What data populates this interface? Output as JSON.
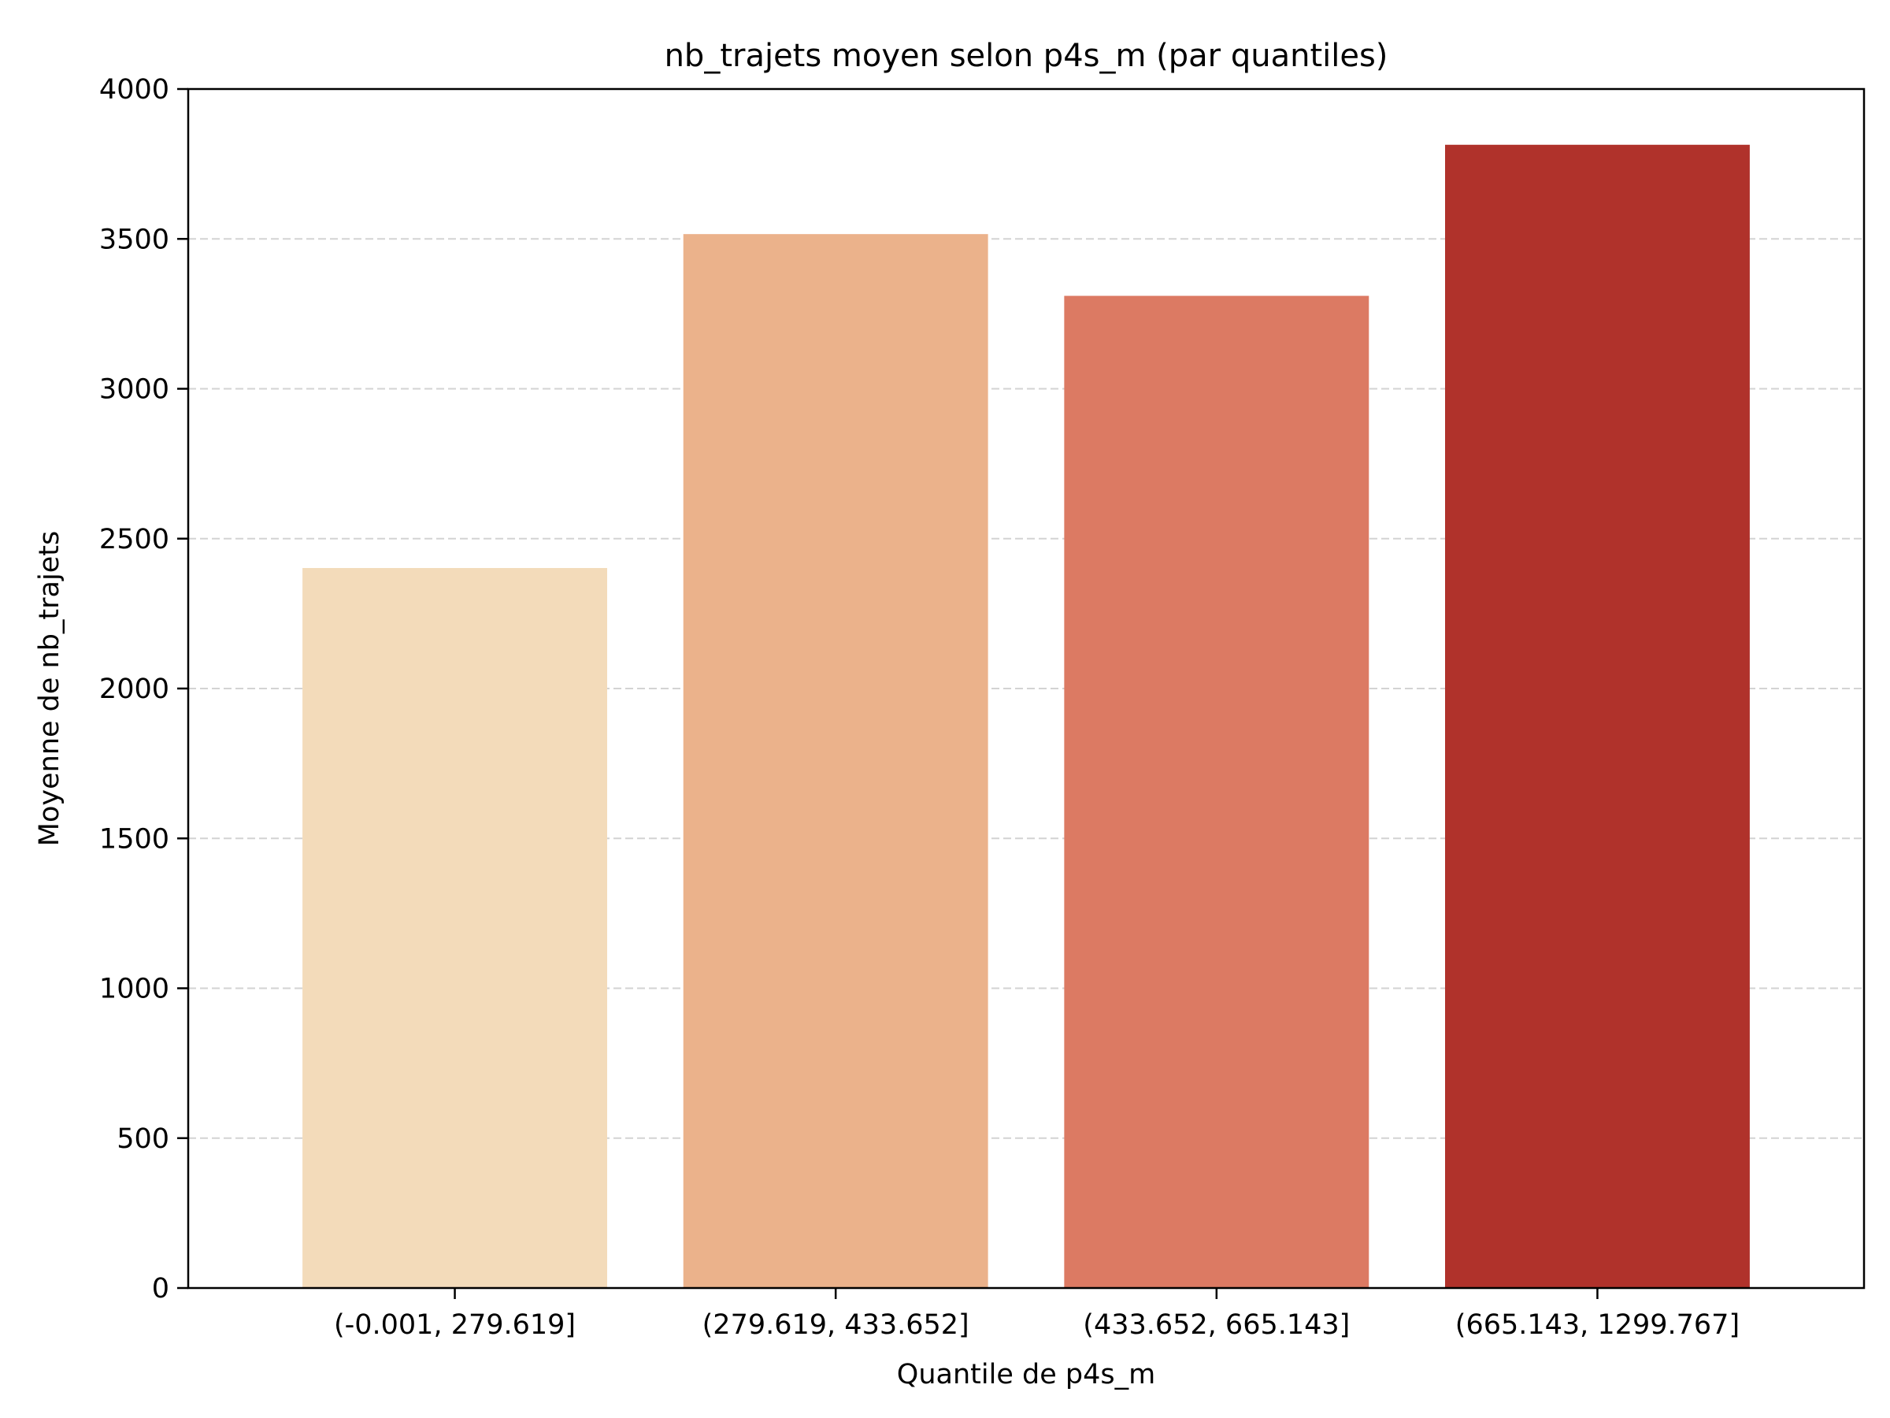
{
  "chart_data": {
    "type": "bar",
    "title": "nb_trajets moyen selon p4s_m (par quantiles)",
    "xlabel": "Quantile de p4s_m",
    "ylabel": "Moyenne de nb_trajets",
    "categories": [
      "(-0.001, 279.619]",
      "(279.619, 433.652]",
      "(433.652, 665.143]",
      "(665.143, 1299.767]"
    ],
    "values": [
      2402,
      3516,
      3310,
      3814
    ],
    "bar_colors": [
      "#f3dbba",
      "#ebb28b",
      "#dc7a63",
      "#b0322b"
    ],
    "ylim": [
      0,
      4000
    ],
    "yticks": [
      0,
      500,
      1000,
      1500,
      2000,
      2500,
      3000,
      3500,
      4000
    ],
    "ytick_labels": [
      "0",
      "500",
      "1000",
      "1500",
      "2000",
      "2500",
      "3000",
      "3500",
      "4000"
    ],
    "grid": "horizontal dashed",
    "grid_color": "#d3d3d3",
    "legend": "none"
  }
}
